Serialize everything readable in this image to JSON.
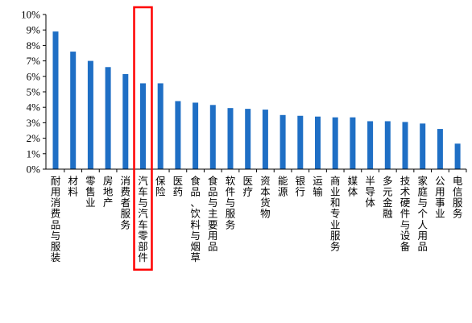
{
  "chart_data": {
    "type": "bar",
    "title": "",
    "xlabel": "",
    "ylabel": "",
    "ylim": [
      0,
      10
    ],
    "y_unit": "%",
    "y_ticks": [
      0,
      1,
      2,
      3,
      4,
      5,
      6,
      7,
      8,
      9,
      10
    ],
    "y_tick_labels": [
      "0%",
      "1%",
      "2%",
      "3%",
      "4%",
      "5%",
      "6%",
      "7%",
      "8%",
      "9%",
      "10%"
    ],
    "bar_color": "#1f6fc5",
    "highlight_color": "#ff0000",
    "highlight_category": "汽车与汽车零部件",
    "grid": false,
    "categories": [
      "耐用消费品与服装",
      "材料",
      "零售业",
      "房地产",
      "消费者服务",
      "汽车与汽车零部件",
      "保险",
      "医药",
      "食品、饮料与烟草",
      "食品与主要用品",
      "软件与服务",
      "医疗",
      "资本货物",
      "能源",
      "银行",
      "运输",
      "商业和专业服务",
      "媒体",
      "半导体",
      "多元金融",
      "技术硬件与设备",
      "家庭与个人用品",
      "公用事业",
      "电信服务"
    ],
    "values": [
      8.9,
      7.6,
      7.0,
      6.6,
      6.15,
      5.55,
      5.55,
      4.4,
      4.3,
      4.15,
      3.95,
      3.9,
      3.85,
      3.5,
      3.45,
      3.4,
      3.35,
      3.35,
      3.1,
      3.1,
      3.05,
      2.95,
      2.6,
      1.65
    ]
  }
}
